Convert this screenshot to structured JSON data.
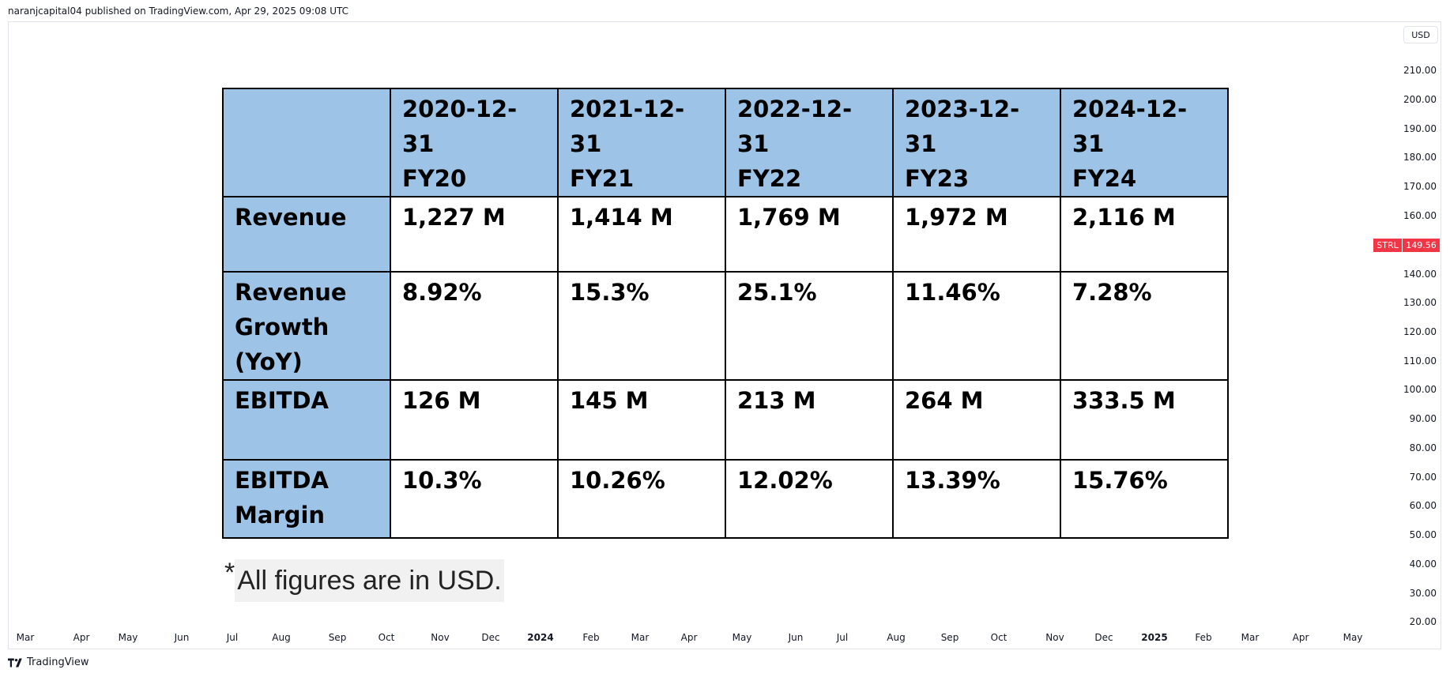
{
  "publisher_line": "naranjcapital04 published on TradingView.com, Apr 29, 2025 09:08 UTC",
  "currency": "USD",
  "symbol": "STRL",
  "last_price": "149.56",
  "colors": {
    "accent": "#f23645",
    "header_fill": "#9dc3e6",
    "border": "#e0e3eb"
  },
  "price_axis": [
    "210.00",
    "200.00",
    "190.00",
    "180.00",
    "170.00",
    "160.00",
    "140.00",
    "130.00",
    "120.00",
    "110.00",
    "100.00",
    "90.00",
    "80.00",
    "70.00",
    "60.00",
    "50.00",
    "40.00",
    "30.00",
    "20.00"
  ],
  "time_axis": [
    {
      "label": "Mar",
      "bold": false
    },
    {
      "label": "Apr",
      "bold": false
    },
    {
      "label": "May",
      "bold": false
    },
    {
      "label": "Jun",
      "bold": false
    },
    {
      "label": "Jul",
      "bold": false
    },
    {
      "label": "Aug",
      "bold": false
    },
    {
      "label": "Sep",
      "bold": false
    },
    {
      "label": "Oct",
      "bold": false
    },
    {
      "label": "Nov",
      "bold": false
    },
    {
      "label": "Dec",
      "bold": false
    },
    {
      "label": "2024",
      "bold": true
    },
    {
      "label": "Feb",
      "bold": false
    },
    {
      "label": "Mar",
      "bold": false
    },
    {
      "label": "Apr",
      "bold": false
    },
    {
      "label": "May",
      "bold": false
    },
    {
      "label": "Jun",
      "bold": false
    },
    {
      "label": "Jul",
      "bold": false
    },
    {
      "label": "Aug",
      "bold": false
    },
    {
      "label": "Sep",
      "bold": false
    },
    {
      "label": "Oct",
      "bold": false
    },
    {
      "label": "Nov",
      "bold": false
    },
    {
      "label": "Dec",
      "bold": false
    },
    {
      "label": "2025",
      "bold": true
    },
    {
      "label": "Feb",
      "bold": false
    },
    {
      "label": "Mar",
      "bold": false
    },
    {
      "label": "Apr",
      "bold": false
    },
    {
      "label": "May",
      "bold": false
    }
  ],
  "table": {
    "columns": [
      {
        "date": "2020-12-31",
        "fy": "FY20"
      },
      {
        "date": "2021-12-31",
        "fy": "FY21"
      },
      {
        "date": "2022-12-31",
        "fy": "FY22"
      },
      {
        "date": "2023-12-31",
        "fy": "FY23"
      },
      {
        "date": "2024-12-31",
        "fy": "FY24"
      }
    ],
    "rows": [
      {
        "label": "Revenue",
        "values": [
          "1,227 M",
          "1,414 M",
          "1,769 M",
          "1,972 M",
          "2,116 M"
        ]
      },
      {
        "label": "Revenue Growth (YoY)",
        "values": [
          "8.92%",
          "15.3%",
          "25.1%",
          "11.46%",
          "7.28%"
        ]
      },
      {
        "label": "EBITDA",
        "values": [
          "126 M",
          "145 M",
          "213 M",
          "264 M",
          "333.5 M"
        ]
      },
      {
        "label": "EBITDA Margin",
        "values": [
          "10.3%",
          "10.26%",
          "12.02%",
          "13.39%",
          "15.76%"
        ]
      }
    ]
  },
  "note": {
    "star": "*",
    "text": "All figures are in USD."
  },
  "brand": "TradingView",
  "icons": {
    "brand_logo": "tradingview-logo-icon"
  }
}
